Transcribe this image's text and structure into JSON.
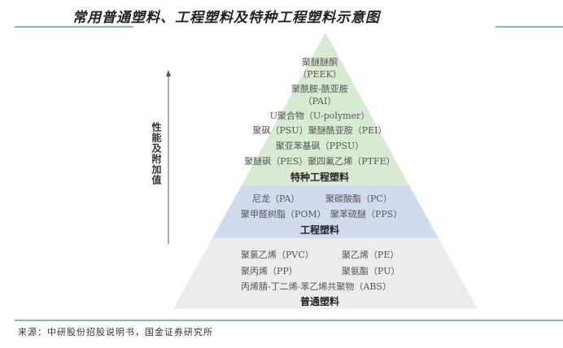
{
  "title": "常用普通塑料、工程塑料及特种工程塑料示意图",
  "axis_label": "性能及附加值",
  "colors": {
    "special": "#d9ead3",
    "engineering": "#d0dcee",
    "general": "#ececec",
    "rule": "#8fb0c8"
  },
  "tiers": {
    "special": {
      "name": "特种工程塑料",
      "items": [
        "聚醚醚酮",
        "（PEEK）",
        "聚酰胺-酰亚胺",
        "（PAI）",
        "U聚合物（U-polymer）",
        "聚砜（PSU）聚醚酰亚胺（PEI）",
        "聚亚苯基砜（PPSU）",
        "聚醚砜（PES）聚四氟乙烯（PTFE）"
      ]
    },
    "engineering": {
      "name": "工程塑料",
      "items": [
        "尼龙（PA）",
        "聚碳酸酯（PC）",
        "聚甲醛树脂（POM）",
        "聚苯硫醚（PPS）"
      ]
    },
    "general": {
      "name": "普通塑料",
      "items": [
        "聚氯乙烯（PVC）",
        "聚乙烯（PE）",
        "聚丙烯（PP）",
        "聚氨酯（PU）",
        "丙烯腈-丁二烯-苯乙烯共聚物（ABS）"
      ]
    }
  },
  "source": "来源：中研股份招股说明书，国金证券研究所"
}
